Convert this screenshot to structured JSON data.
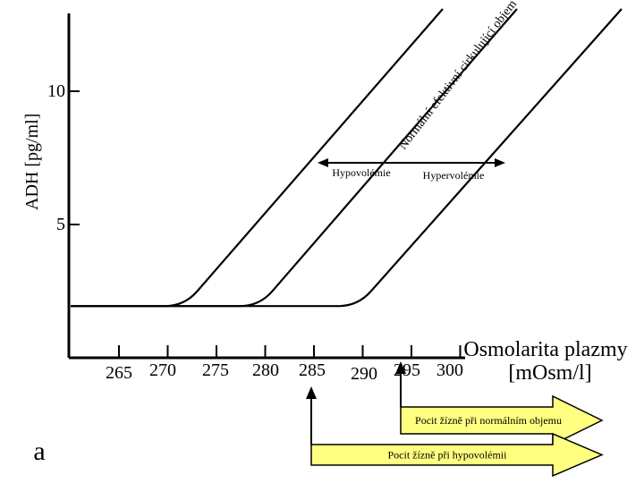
{
  "chart_data": {
    "type": "line",
    "panel_label": "a",
    "ylabel": "ADH [pg/ml]",
    "xlabel_line1": "Osmolarita plazmy",
    "xlabel_line2": "[mOsm/l]",
    "y_ticks": [
      {
        "value": 5,
        "label": "5"
      },
      {
        "value": 10,
        "label": "10"
      }
    ],
    "x_ticks": [
      "265",
      "270",
      "275",
      "280",
      "285",
      "290",
      "295",
      "300"
    ],
    "x_tick_values": [
      265,
      270,
      275,
      280,
      285,
      290,
      295,
      300
    ],
    "baseline_adh": 1,
    "series": [
      {
        "threshold": 270,
        "slope": 0.7
      },
      {
        "name": "Normální efektivní cirkulující objem",
        "threshold": 278,
        "slope": 0.7
      },
      {
        "threshold": 288,
        "slope": 0.7
      }
    ],
    "arrow": {
      "from": 283,
      "to": 300,
      "at_adh": 7
    },
    "annotations": {
      "left": "Hypovolémie",
      "right": "Hypervolémie"
    },
    "thirst_arrows": [
      {
        "label": "Pocit žízně při normálním objemu",
        "start": 290
      },
      {
        "label": "Pocit žízně při hypovolémii",
        "start": 285
      }
    ]
  }
}
